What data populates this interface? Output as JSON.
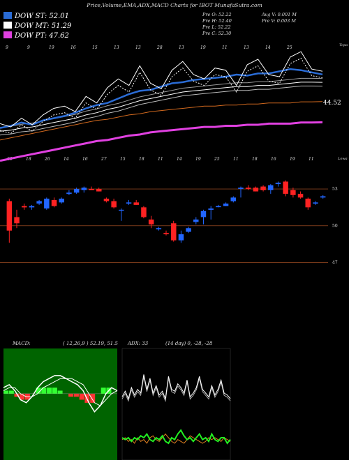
{
  "header": {
    "title": "Price,Volume,EMA,ADX,MACD Charts for IBOT MunafaSutra.com",
    "legend": [
      {
        "label": "DOW ST: 52.01",
        "color": "#2a6cd6"
      },
      {
        "label": "DOW MT: 51.29",
        "color": "#ffffff"
      },
      {
        "label": "DOW PT: 47.62",
        "color": "#e040e0"
      }
    ],
    "ohlc": [
      "Pre   O: 52.22",
      "Pre   H: 52.40",
      "Pre   L: 52.22",
      "Pre   C: 52.30"
    ],
    "vol": [
      "Avg V: 0.001 M",
      "Pre   V: 0.003 M"
    ]
  },
  "colors": {
    "up": "#2266ff",
    "down": "#ff2222",
    "grid": "#7a3a1a",
    "ema_st": "#2a6cd6",
    "ema_pt": "#e040e0",
    "macd_bg": "#006400"
  },
  "chart_data": [
    {
      "type": "line",
      "name": "price-ema-panel",
      "series": [
        {
          "name": "DOW ST",
          "values": [
            47.1,
            47.3,
            47.6,
            47.4,
            47.8,
            48.0,
            48.2,
            48.5,
            48.9,
            49.2,
            49.4,
            49.8,
            50.2,
            50.5,
            50.6,
            50.9,
            51.2,
            51.3,
            51.5,
            51.6,
            51.7,
            51.8,
            52.0,
            51.9,
            52.1,
            52.1,
            52.3,
            52.5,
            52.4,
            52.2,
            52.01
          ]
        },
        {
          "name": "DOW MT",
          "values": [
            46.8,
            46.9,
            47.1,
            47.2,
            47.4,
            47.6,
            47.8,
            48.0,
            48.3,
            48.5,
            48.8,
            49.0,
            49.3,
            49.6,
            49.8,
            50.0,
            50.2,
            50.4,
            50.5,
            50.6,
            50.7,
            50.8,
            50.9,
            50.9,
            51.0,
            51.0,
            51.1,
            51.2,
            51.3,
            51.3,
            51.29
          ]
        },
        {
          "name": "DOW PT",
          "values": [
            44.1,
            44.3,
            44.5,
            44.7,
            44.9,
            45.1,
            45.3,
            45.5,
            45.7,
            45.9,
            46.0,
            46.2,
            46.4,
            46.5,
            46.7,
            46.8,
            46.9,
            47.0,
            47.1,
            47.2,
            47.2,
            47.3,
            47.3,
            47.4,
            47.4,
            47.5,
            47.5,
            47.5,
            47.6,
            47.6,
            47.62
          ]
        },
        {
          "name": "price",
          "values": [
            47.5,
            47.2,
            48.0,
            47.4,
            48.3,
            48.9,
            49.1,
            48.6,
            50.0,
            49.4,
            50.8,
            51.6,
            51.0,
            52.8,
            51.2,
            50.7,
            52.4,
            53.2,
            52.0,
            51.6,
            52.6,
            52.4,
            51.0,
            52.9,
            53.4,
            52.0,
            51.8,
            53.6,
            54.1,
            52.5,
            52.3
          ]
        }
      ],
      "labels": {
        "price_tag": "44.52"
      },
      "date_ticks_top": [
        "9",
        "9",
        "19",
        "16",
        "15",
        "13",
        "13",
        "28",
        "13",
        "19",
        "11",
        "13",
        "14",
        "25"
      ],
      "date_ticks_bottom": [
        "20",
        "18",
        "26",
        "14",
        "16",
        "27",
        "15",
        "18",
        "11",
        "14",
        "19",
        "25",
        "11",
        "18",
        "16",
        "19",
        "11"
      ],
      "axis_hints": [
        "Topa",
        "Lowa"
      ]
    },
    {
      "type": "candlestick",
      "name": "daily-candles",
      "yticks": [
        53,
        50,
        47
      ],
      "candles": [
        {
          "o": 52.0,
          "h": 52.2,
          "l": 48.6,
          "c": 49.6
        },
        {
          "o": 50.7,
          "h": 51.3,
          "l": 49.8,
          "c": 50.2
        },
        {
          "o": 51.6,
          "h": 51.8,
          "l": 51.3,
          "c": 51.5
        },
        {
          "o": 51.5,
          "h": 51.7,
          "l": 51.3,
          "c": 51.6
        },
        {
          "o": 51.8,
          "h": 52.1,
          "l": 51.7,
          "c": 52.0
        },
        {
          "o": 51.4,
          "h": 52.3,
          "l": 51.3,
          "c": 52.2
        },
        {
          "o": 52.1,
          "h": 52.3,
          "l": 51.5,
          "c": 51.6
        },
        {
          "o": 51.9,
          "h": 52.3,
          "l": 51.8,
          "c": 52.2
        },
        {
          "o": 52.6,
          "h": 52.9,
          "l": 52.5,
          "c": 52.7
        },
        {
          "o": 52.7,
          "h": 53.1,
          "l": 52.6,
          "c": 53.0
        },
        {
          "o": 52.9,
          "h": 53.2,
          "l": 52.7,
          "c": 53.1
        },
        {
          "o": 53.0,
          "h": 53.2,
          "l": 52.9,
          "c": 52.9
        },
        {
          "o": 53.0,
          "h": 53.1,
          "l": 52.8,
          "c": 52.8
        },
        {
          "o": 52.2,
          "h": 52.3,
          "l": 51.9,
          "c": 52.0
        },
        {
          "o": 52.0,
          "h": 52.2,
          "l": 51.4,
          "c": 51.5
        },
        {
          "o": 51.3,
          "h": 51.4,
          "l": 50.4,
          "c": 51.3
        },
        {
          "o": 51.8,
          "h": 52.1,
          "l": 51.7,
          "c": 51.9
        },
        {
          "o": 51.9,
          "h": 52.1,
          "l": 51.7,
          "c": 51.7
        },
        {
          "o": 51.5,
          "h": 51.6,
          "l": 50.6,
          "c": 50.7
        },
        {
          "o": 50.5,
          "h": 50.8,
          "l": 49.8,
          "c": 50.1
        },
        {
          "o": 49.7,
          "h": 49.9,
          "l": 49.6,
          "c": 49.8
        },
        {
          "o": 49.4,
          "h": 49.6,
          "l": 49.2,
          "c": 49.3
        },
        {
          "o": 50.2,
          "h": 50.4,
          "l": 48.7,
          "c": 48.8
        },
        {
          "o": 48.8,
          "h": 49.6,
          "l": 48.6,
          "c": 49.3
        },
        {
          "o": 49.5,
          "h": 49.9,
          "l": 49.4,
          "c": 49.8
        },
        {
          "o": 50.3,
          "h": 50.7,
          "l": 50.1,
          "c": 50.5
        },
        {
          "o": 50.7,
          "h": 51.3,
          "l": 50.1,
          "c": 51.2
        },
        {
          "o": 51.3,
          "h": 51.6,
          "l": 50.5,
          "c": 51.4
        },
        {
          "o": 51.6,
          "h": 51.7,
          "l": 51.5,
          "c": 51.6
        },
        {
          "o": 51.6,
          "h": 51.9,
          "l": 51.6,
          "c": 51.8
        },
        {
          "o": 52.0,
          "h": 52.4,
          "l": 51.9,
          "c": 52.3
        },
        {
          "o": 53.0,
          "h": 53.2,
          "l": 52.3,
          "c": 53.1
        },
        {
          "o": 53.1,
          "h": 53.3,
          "l": 52.9,
          "c": 53.0
        },
        {
          "o": 53.1,
          "h": 53.2,
          "l": 52.8,
          "c": 52.8
        },
        {
          "o": 53.2,
          "h": 53.3,
          "l": 52.8,
          "c": 52.9
        },
        {
          "o": 52.9,
          "h": 53.4,
          "l": 52.6,
          "c": 53.3
        },
        {
          "o": 53.4,
          "h": 53.6,
          "l": 53.2,
          "c": 53.5
        },
        {
          "o": 53.6,
          "h": 53.7,
          "l": 52.4,
          "c": 52.6
        },
        {
          "o": 52.9,
          "h": 53.1,
          "l": 52.3,
          "c": 52.5
        },
        {
          "o": 52.6,
          "h": 52.8,
          "l": 52.2,
          "c": 52.3
        },
        {
          "o": 52.2,
          "h": 52.3,
          "l": 51.3,
          "c": 51.5
        },
        {
          "o": 51.8,
          "h": 52.0,
          "l": 51.7,
          "c": 51.9
        },
        {
          "o": 52.3,
          "h": 52.5,
          "l": 52.2,
          "c": 52.4
        }
      ]
    },
    {
      "type": "line",
      "name": "macd-panel",
      "label": "MACD:",
      "params": "( 12,26,9 ) 52.19, 51.5",
      "series": [
        {
          "name": "macd",
          "values": [
            0.2,
            0.3,
            0.1,
            -0.2,
            -0.3,
            -0.1,
            0.2,
            0.4,
            0.5,
            0.6,
            0.6,
            0.5,
            0.4,
            0.3,
            0.1,
            -0.3,
            -0.6,
            -0.4,
            0.0,
            0.2,
            0.1
          ]
        },
        {
          "name": "signal",
          "values": [
            0.1,
            0.2,
            0.2,
            0.0,
            -0.1,
            -0.1,
            0.0,
            0.2,
            0.3,
            0.4,
            0.5,
            0.5,
            0.5,
            0.4,
            0.3,
            0.0,
            -0.3,
            -0.4,
            -0.2,
            0.0,
            0.1
          ]
        }
      ],
      "hist": [
        0.1,
        0.1,
        -0.1,
        -0.2,
        -0.2,
        0.0,
        0.2,
        0.2,
        0.2,
        0.2,
        0.1,
        0.0,
        -0.1,
        -0.1,
        -0.2,
        -0.3,
        -0.3,
        0.0,
        0.2,
        0.2,
        0.0
      ]
    },
    {
      "type": "line",
      "name": "adx-panel",
      "label": "ADX: 33",
      "params": "(14 day) 0, -28, -28",
      "series": [
        {
          "name": "adx",
          "values": [
            34,
            37,
            33,
            39,
            35,
            38,
            36,
            46,
            38,
            44,
            36,
            40,
            35,
            37,
            33,
            45,
            38,
            37,
            41,
            39,
            36,
            43,
            34,
            36,
            39,
            45,
            38,
            36,
            34,
            40,
            35,
            38,
            43,
            36,
            35,
            33
          ]
        },
        {
          "name": "plus_di",
          "values": [
            12,
            11,
            12,
            10,
            12,
            11,
            13,
            12,
            14,
            11,
            10,
            12,
            11,
            13,
            10,
            9,
            12,
            11,
            14,
            16,
            13,
            11,
            12,
            10,
            12,
            14,
            11,
            12,
            10,
            14,
            11,
            10,
            12,
            12,
            9,
            11
          ]
        },
        {
          "name": "minus_di",
          "values": [
            11,
            12,
            10,
            11,
            9,
            12,
            10,
            11,
            9,
            12,
            13,
            11,
            10,
            12,
            14,
            12,
            10,
            9,
            11,
            10,
            9,
            11,
            13,
            12,
            11,
            10,
            9,
            10,
            12,
            11,
            12,
            11,
            10,
            12,
            11,
            10
          ]
        }
      ]
    }
  ]
}
